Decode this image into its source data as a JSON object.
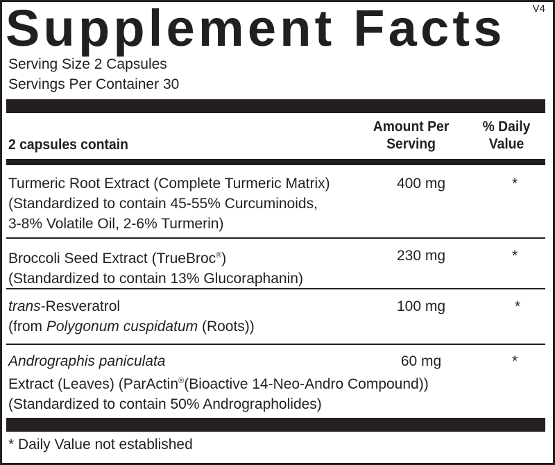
{
  "title": "Supplement Facts",
  "version": "V4",
  "serving_size": "Serving Size 2 Capsules",
  "servings_per_container": "Servings Per Container 30",
  "header": {
    "contain": "2 capsules contain",
    "amount_line1": "Amount Per",
    "amount_line2": "Serving",
    "dv_line1": "% Daily",
    "dv_line2": "Value"
  },
  "ingredients": [
    {
      "line1": "Turmeric Root Extract (Complete Turmeric Matrix)",
      "line2": "(Standardized to contain 45-55% Curcuminoids,",
      "line3": "3-8% Volatile Oil, 2-6% Turmerin)",
      "amount": "400 mg",
      "dv": "*"
    },
    {
      "line1a": "Broccoli Seed Extract (TrueBroc",
      "line1_reg": "®",
      "line1b": ")",
      "line2": "(Standardized to contain 13% Glucoraphanin)",
      "amount": "230 mg",
      "dv": "*"
    },
    {
      "line1_italic": "trans",
      "line1": "-Resveratrol",
      "line2a": "(from ",
      "line2_italic": "Polygonum cuspidatum",
      "line2b": " (Roots))",
      "amount": "100 mg",
      "dv": "*"
    },
    {
      "line1_italic": "Andrographis paniculata",
      "line2a": "Extract (Leaves) (ParActin",
      "line2_reg": "®",
      "line2b": "(Bioactive 14-Neo-Andro Compound))",
      "line3": "(Standardized to contain 50% Andrographolides)",
      "amount": "60 mg",
      "dv": "*"
    }
  ],
  "footnote": "* Daily Value not established"
}
